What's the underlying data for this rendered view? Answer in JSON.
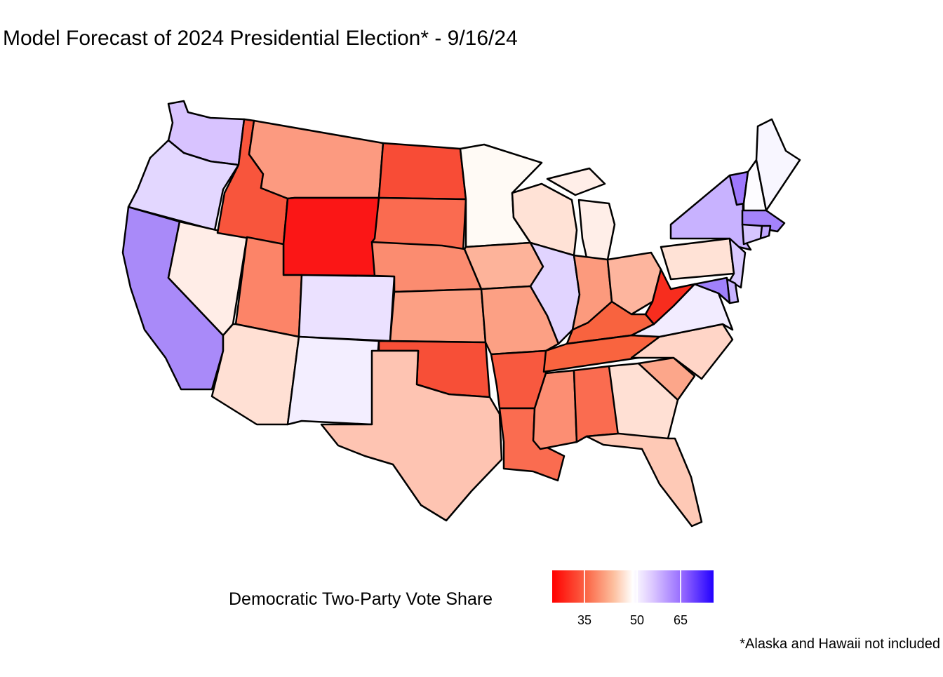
{
  "title": "Model Forecast of 2024 Presidential Election* - 9/16/24",
  "legend": {
    "title": "Democratic Two-Party Vote Share",
    "ticks": [
      "35",
      "50",
      "65"
    ],
    "range": [
      26,
      73
    ],
    "colors": {
      "low": "#ff0000",
      "mid": "#ffffff",
      "high": "#2200ff"
    }
  },
  "footnote": "*Alaska and Hawaii not included",
  "chart_data": {
    "type": "choropleth",
    "value_label": "Democratic Two-Party Vote Share",
    "states": [
      {
        "state": "WA",
        "fill": "#d8c3ff"
      },
      {
        "state": "OR",
        "fill": "#e3d7ff"
      },
      {
        "state": "CA",
        "fill": "#a98af9"
      },
      {
        "state": "NV",
        "fill": "#ffede7"
      },
      {
        "state": "ID",
        "fill": "#f8553c"
      },
      {
        "state": "MT",
        "fill": "#fc9a80"
      },
      {
        "state": "WY",
        "fill": "#fb1616"
      },
      {
        "state": "UT",
        "fill": "#fc8468"
      },
      {
        "state": "AZ",
        "fill": "#ffe0d4"
      },
      {
        "state": "CO",
        "fill": "#ebe1ff"
      },
      {
        "state": "NM",
        "fill": "#f3eeff"
      },
      {
        "state": "ND",
        "fill": "#f84c36"
      },
      {
        "state": "SD",
        "fill": "#fa6b50"
      },
      {
        "state": "NE",
        "fill": "#fb8c70"
      },
      {
        "state": "KS",
        "fill": "#fca084"
      },
      {
        "state": "OK",
        "fill": "#f74f37"
      },
      {
        "state": "TX",
        "fill": "#fec4b2"
      },
      {
        "state": "MN",
        "fill": "#fffaf5"
      },
      {
        "state": "IA",
        "fill": "#fdb39a"
      },
      {
        "state": "MO",
        "fill": "#fca084"
      },
      {
        "state": "AR",
        "fill": "#f8593f"
      },
      {
        "state": "LA",
        "fill": "#fa6c50"
      },
      {
        "state": "WI",
        "fill": "#ffe2d6"
      },
      {
        "state": "IL",
        "fill": "#e1d4ff"
      },
      {
        "state": "MI",
        "fill": "#ffeee8"
      },
      {
        "state": "IN",
        "fill": "#fc9a7d"
      },
      {
        "state": "OH",
        "fill": "#fdb59e"
      },
      {
        "state": "KY",
        "fill": "#f8633f"
      },
      {
        "state": "TN",
        "fill": "#f9643f"
      },
      {
        "state": "MS",
        "fill": "#fc8e73"
      },
      {
        "state": "AL",
        "fill": "#fa6c50"
      },
      {
        "state": "GA",
        "fill": "#ffe0d4"
      },
      {
        "state": "FL",
        "fill": "#fec9b6"
      },
      {
        "state": "SC",
        "fill": "#fca68a"
      },
      {
        "state": "NC",
        "fill": "#ffd5c7"
      },
      {
        "state": "VA",
        "fill": "#f2ecff"
      },
      {
        "state": "WV",
        "fill": "#f72d1e"
      },
      {
        "state": "PA",
        "fill": "#ffe2d6"
      },
      {
        "state": "NY",
        "fill": "#c8b2ff"
      },
      {
        "state": "VT",
        "fill": "#9e78fc"
      },
      {
        "state": "NH",
        "fill": "#fdfcff"
      },
      {
        "state": "ME",
        "fill": "#f8f6ff"
      },
      {
        "state": "MA",
        "fill": "#a483fb"
      },
      {
        "state": "CT",
        "fill": "#d6c5ff"
      },
      {
        "state": "RI",
        "fill": "#c0a7ff"
      },
      {
        "state": "NJ",
        "fill": "#d9caff"
      },
      {
        "state": "DE",
        "fill": "#c7b3ff"
      },
      {
        "state": "MD",
        "fill": "#a081fb"
      }
    ]
  }
}
